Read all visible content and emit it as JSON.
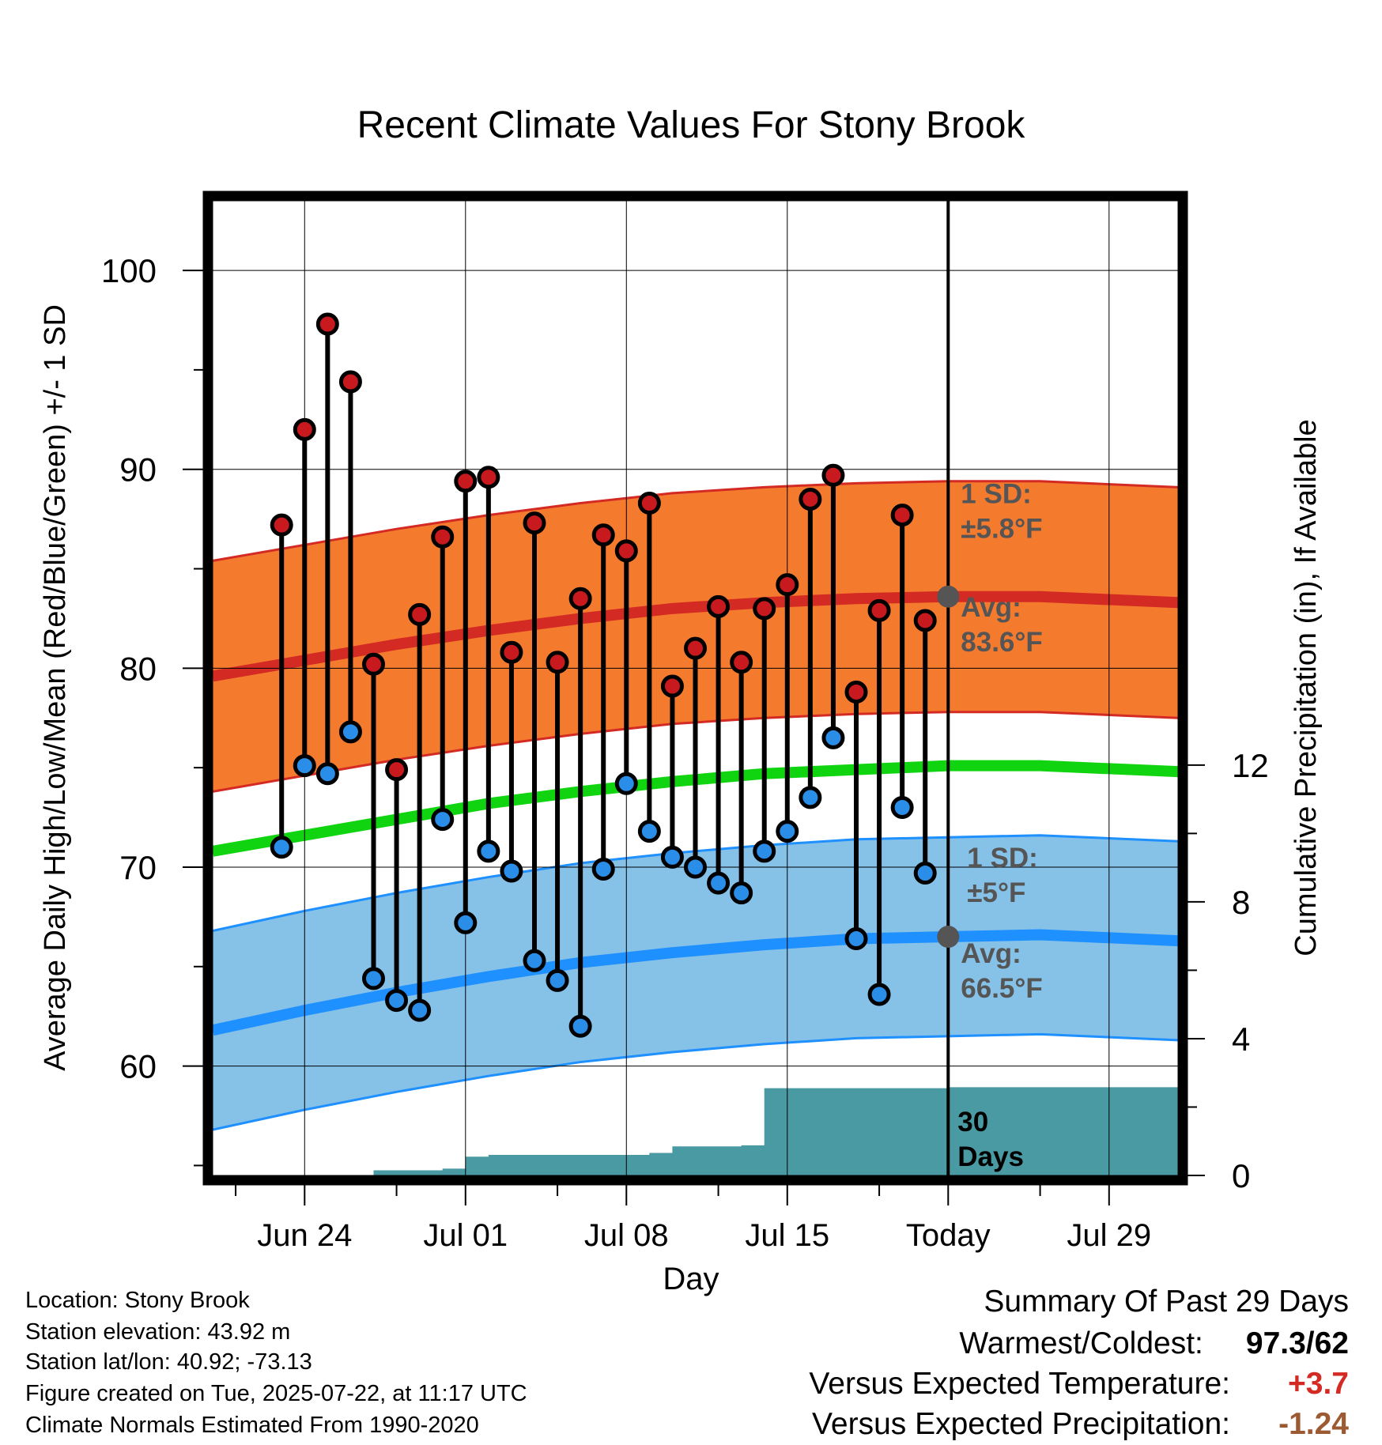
{
  "chart_data": {
    "type": "line",
    "title": "Recent Climate Values For Stony Brook",
    "xlabel": "Day",
    "ylabel": "Average Daily High/Low/Mean (Red/Blue/Green) +/- 1 SD",
    "y2label": "Cumulative Precipitation (in), If Available",
    "ylim": [
      54.5,
      103.5
    ],
    "y2lim": [
      0,
      28.5
    ],
    "yticks": [
      60,
      70,
      80,
      90,
      100
    ],
    "y2ticks": [
      0,
      4,
      8,
      12
    ],
    "xlim": [
      "2025-06-20",
      "2025-08-01"
    ],
    "xticks": [
      {
        "date": "2025-06-24",
        "label": "Jun 24"
      },
      {
        "date": "2025-07-01",
        "label": "Jul 01"
      },
      {
        "date": "2025-07-08",
        "label": "Jul 08"
      },
      {
        "date": "2025-07-15",
        "label": "Jul 15"
      },
      {
        "date": "2025-07-22",
        "label": "Today"
      },
      {
        "date": "2025-07-29",
        "label": "Jul 29"
      }
    ],
    "grid": true,
    "today": "2025-07-22",
    "period_label": "30\nDays",
    "daily": {
      "dates": [
        "2025-06-23",
        "2025-06-24",
        "2025-06-25",
        "2025-06-26",
        "2025-06-27",
        "2025-06-28",
        "2025-06-29",
        "2025-06-30",
        "2025-07-01",
        "2025-07-02",
        "2025-07-03",
        "2025-07-04",
        "2025-07-05",
        "2025-07-06",
        "2025-07-07",
        "2025-07-08",
        "2025-07-09",
        "2025-07-10",
        "2025-07-11",
        "2025-07-12",
        "2025-07-13",
        "2025-07-14",
        "2025-07-15",
        "2025-07-16",
        "2025-07-17",
        "2025-07-18",
        "2025-07-19",
        "2025-07-20",
        "2025-07-21",
        "2025-07-22"
      ],
      "high": [
        87.2,
        92.0,
        97.3,
        94.4,
        80.2,
        74.9,
        82.7,
        86.6,
        89.4,
        89.6,
        80.8,
        87.3,
        80.3,
        83.5,
        86.7,
        85.9,
        88.3,
        79.1,
        81.0,
        83.1,
        80.3,
        83.0,
        84.2,
        88.5,
        89.7,
        78.8,
        82.9,
        87.7,
        82.4,
        null
      ],
      "low": [
        71.0,
        75.1,
        74.7,
        76.8,
        64.4,
        63.3,
        62.8,
        72.4,
        67.2,
        70.8,
        69.8,
        65.3,
        64.3,
        62.0,
        69.9,
        74.2,
        71.8,
        70.5,
        70.0,
        69.2,
        68.7,
        70.8,
        71.8,
        73.5,
        76.5,
        66.4,
        63.6,
        73.0,
        69.7,
        null
      ]
    },
    "normals": {
      "dates": [
        "2025-06-20",
        "2025-06-24",
        "2025-06-28",
        "2025-07-02",
        "2025-07-06",
        "2025-07-10",
        "2025-07-14",
        "2025-07-18",
        "2025-07-22",
        "2025-07-26",
        "2025-07-30",
        "2025-08-01"
      ],
      "high_avg": [
        79.6,
        80.4,
        81.2,
        81.9,
        82.5,
        83.0,
        83.3,
        83.5,
        83.6,
        83.6,
        83.4,
        83.3
      ],
      "low_avg": [
        61.8,
        62.8,
        63.7,
        64.5,
        65.2,
        65.7,
        66.1,
        66.4,
        66.5,
        66.6,
        66.4,
        66.3
      ],
      "mean_avg": [
        70.8,
        71.6,
        72.4,
        73.2,
        73.8,
        74.3,
        74.7,
        74.9,
        75.1,
        75.1,
        74.9,
        74.8
      ]
    },
    "high_sd": 5.8,
    "low_sd": 5.0,
    "precip": {
      "dates": [
        "2025-06-20",
        "2025-06-26",
        "2025-06-27",
        "2025-06-30",
        "2025-07-01",
        "2025-07-02",
        "2025-07-09",
        "2025-07-10",
        "2025-07-13",
        "2025-07-14",
        "2025-07-22",
        "2025-08-01"
      ],
      "values": [
        0,
        0,
        0.15,
        0.2,
        0.55,
        0.6,
        0.66,
        0.85,
        0.88,
        2.55,
        2.58,
        2.58
      ]
    },
    "annotations": {
      "high_sd": "1 SD:\n±5.8°F",
      "high_avg": "Avg:\n83.6°F",
      "low_sd": "1 SD:\n±5°F",
      "low_avg": "Avg:\n66.5°F"
    },
    "colors": {
      "high_band": "#f47a2e",
      "high_line": "#d42a24",
      "mean_line": "#10d410",
      "low_band": "#86c1e8",
      "low_line": "#1e90ff",
      "precip": "#4a9aa3",
      "high_dot": "#c8191e",
      "low_dot": "#2a8ee8",
      "annotation": "#555555"
    }
  },
  "footer": {
    "location": "Location: Stony Brook",
    "elevation": "Station elevation: 43.92 m",
    "latlon": "Station lat/lon: 40.92; -73.13",
    "created": "Figure created on Tue, 2025-07-22, at 11:17 UTC",
    "normals": "Climate Normals Estimated From 1990-2020"
  },
  "summary": {
    "title": "Summary Of Past 29 Days",
    "warmest_coldest_label": "Warmest/Coldest:",
    "warmest": "97.3",
    "coldest": "/62",
    "temp_label": "Versus Expected Temperature:",
    "temp_value": "+3.7",
    "temp_color": "#d42a24",
    "precip_label": "Versus Expected Precipitation:",
    "precip_value": "-1.24",
    "precip_color": "#9c5a32"
  }
}
